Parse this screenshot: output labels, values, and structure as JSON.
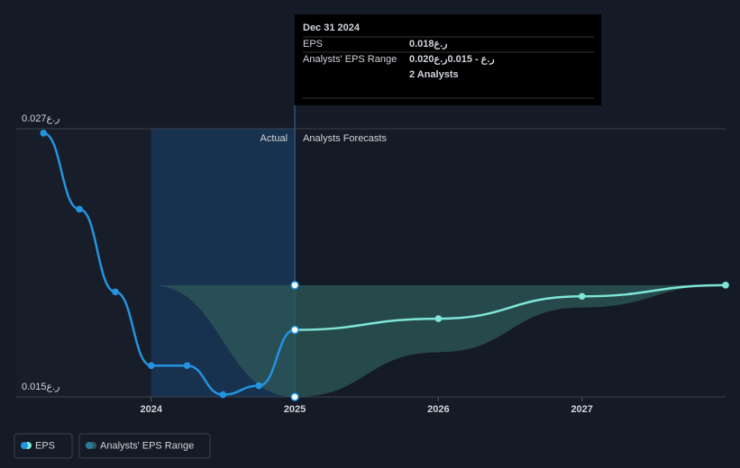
{
  "chart_data": {
    "type": "line",
    "xlim": [
      2023.06,
      2028
    ],
    "xticks": [
      2024,
      2025,
      2026,
      2027
    ],
    "ylim": [
      0.015,
      0.027
    ],
    "yticks": [
      {
        "value": 0.015,
        "label": "0.015ر.ع"
      },
      {
        "value": 0.027,
        "label": "0.027ر.ع"
      }
    ],
    "grid": true,
    "forecast_start": 2025,
    "actual_label": "Actual",
    "forecast_label": "Analysts Forecasts",
    "series": [
      {
        "name": "EPS",
        "color": "#2394df",
        "forecast_color": "#7fe6d8",
        "x": [
          2023.25,
          2023.5,
          2023.75,
          2024,
          2024.25,
          2024.5,
          2024.75,
          2025,
          2026,
          2027,
          2028
        ],
        "values": [
          0.0268,
          0.0234,
          0.0197,
          0.0164,
          0.0164,
          0.0151,
          0.0155,
          0.018,
          0.0185,
          0.0195,
          0.02
        ]
      },
      {
        "name": "Analysts' EPS Range",
        "color": "#2c5a58",
        "x": [
          2023.25,
          2024,
          2025,
          2026,
          2027,
          2028
        ],
        "low": [
          0.0268,
          0.02,
          0.015,
          0.017,
          0.019,
          0.02
        ],
        "high": [
          0.0268,
          0.02,
          0.02,
          0.02,
          0.02,
          0.02
        ]
      }
    ],
    "tooltip": {
      "date": "Dec 31 2024",
      "eps_label": "EPS",
      "eps_value": "0.018ر.ع",
      "range_label": "Analysts' EPS Range",
      "range_value": "0.020ر.ع - 0.015ر.ع",
      "analysts": "2 Analysts"
    }
  }
}
